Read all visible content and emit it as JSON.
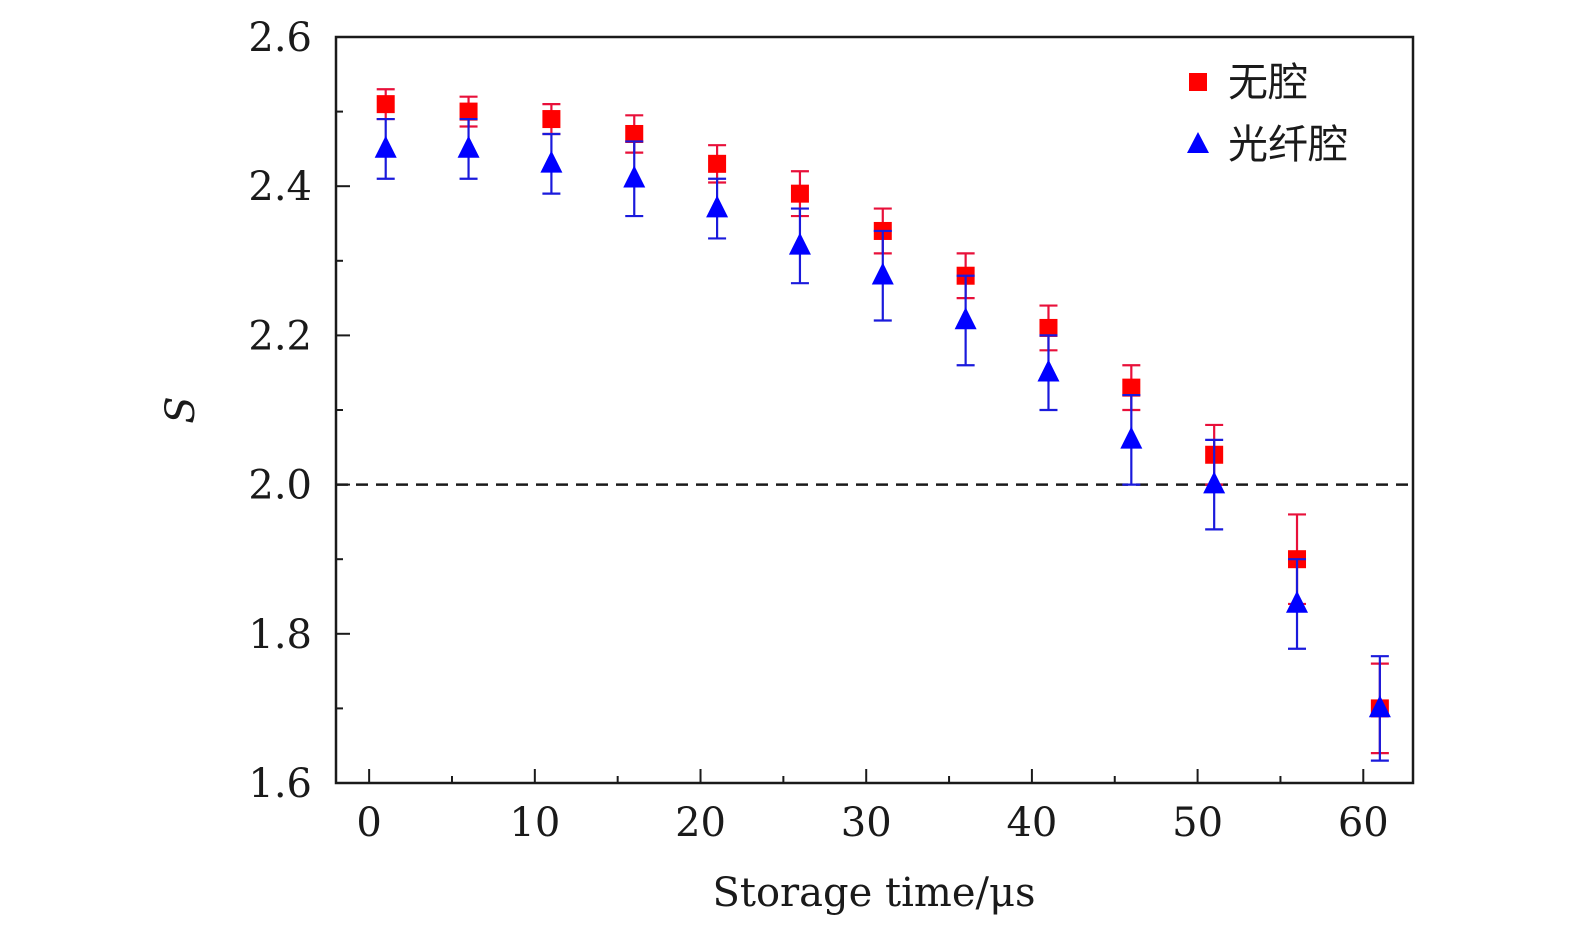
{
  "chart_data": {
    "type": "scatter",
    "xlabel": "Storage time/μs",
    "ylabel": "S",
    "xlim": [
      -2,
      63
    ],
    "ylim": [
      1.6,
      2.6
    ],
    "xticks": [
      "0",
      "10",
      "20",
      "30",
      "40",
      "50",
      "60"
    ],
    "yticks": [
      "1.6",
      "1.8",
      "2.0",
      "2.2",
      "2.4",
      "2.6"
    ],
    "grid": false,
    "legend_position": "top-right",
    "reference_line": {
      "y": 2.0,
      "style": "dashed"
    },
    "series": [
      {
        "name": "无腔",
        "marker": "square",
        "color": "#ff0000",
        "error_color": "#e8103a",
        "x": [
          1,
          6,
          11,
          16,
          21,
          26,
          31,
          36,
          41,
          46,
          51,
          56,
          61
        ],
        "y": [
          2.51,
          2.5,
          2.49,
          2.47,
          2.43,
          2.39,
          2.34,
          2.28,
          2.21,
          2.13,
          2.04,
          1.9,
          1.7
        ],
        "err": [
          0.02,
          0.02,
          0.02,
          0.025,
          0.025,
          0.03,
          0.03,
          0.03,
          0.03,
          0.03,
          0.04,
          0.06,
          0.06
        ]
      },
      {
        "name": "光纤腔",
        "marker": "triangle",
        "color": "#0000ff",
        "error_color": "#1a1adc",
        "x": [
          1,
          6,
          11,
          16,
          21,
          26,
          31,
          36,
          41,
          46,
          51,
          56,
          61
        ],
        "y": [
          2.45,
          2.45,
          2.43,
          2.41,
          2.37,
          2.32,
          2.28,
          2.22,
          2.15,
          2.06,
          2.0,
          1.84,
          1.7
        ],
        "err": [
          0.04,
          0.04,
          0.04,
          0.05,
          0.04,
          0.05,
          0.06,
          0.06,
          0.05,
          0.06,
          0.06,
          0.06,
          0.07
        ]
      }
    ]
  }
}
